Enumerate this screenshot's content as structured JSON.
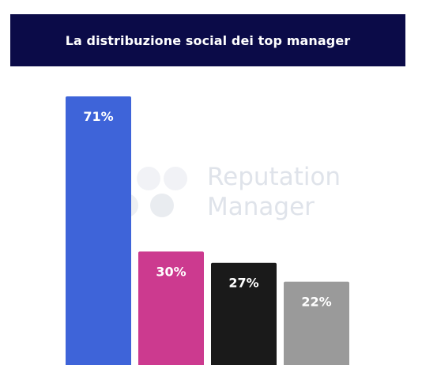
{
  "header": {
    "title": "La distribuzione social dei top manager"
  },
  "watermark": {
    "line1": "Reputation",
    "line2": "Manager"
  },
  "chart_data": {
    "type": "bar",
    "categories": [
      "",
      "",
      "",
      ""
    ],
    "values": [
      71,
      30,
      27,
      22
    ],
    "labels": [
      "71%",
      "30%",
      "27%",
      "22%"
    ],
    "colors": [
      "#3e64d9",
      "#cc3a8f",
      "#1a1a1a",
      "#9a9a9a"
    ],
    "title": "La distribuzione social dei top manager",
    "xlabel": "",
    "ylabel": "",
    "ylim": [
      0,
      71
    ],
    "grid": false,
    "legend": "none"
  }
}
